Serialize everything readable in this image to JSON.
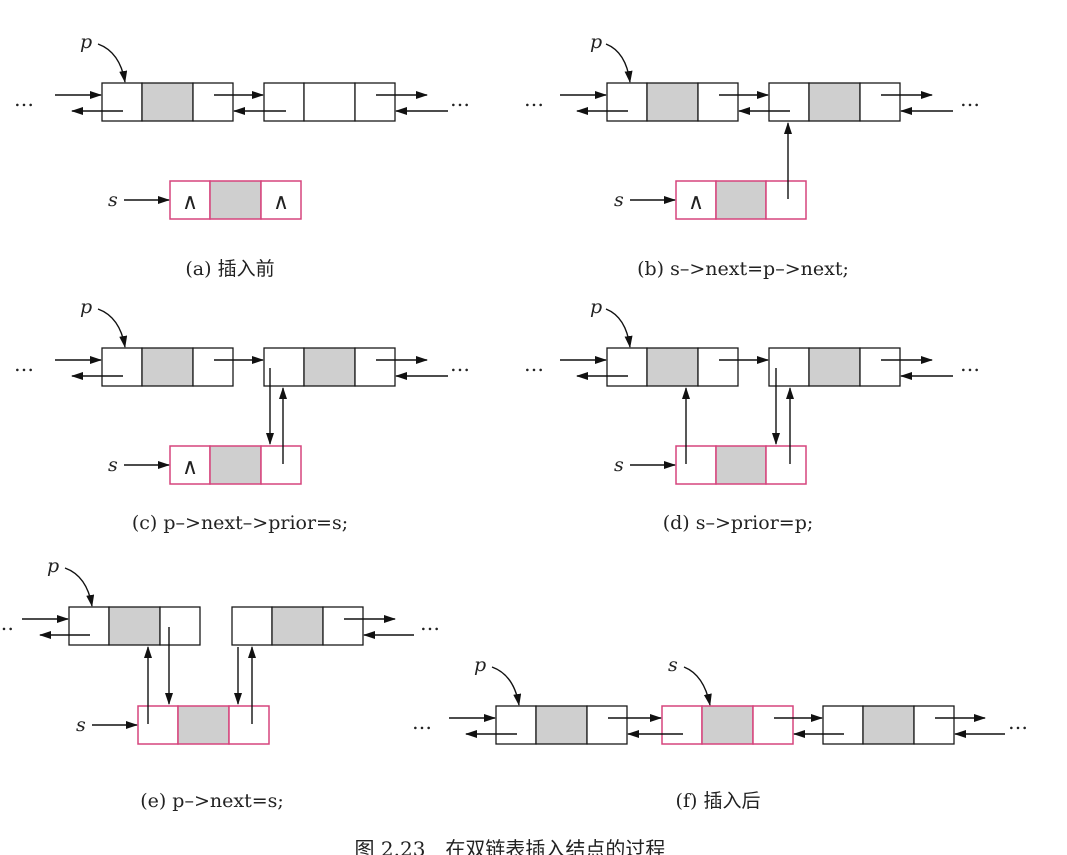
{
  "panels": {
    "a": {
      "caption": "(a) 插入前",
      "p_label": "p",
      "s_label": "s",
      "null_symbol": "∧"
    },
    "b": {
      "caption": "(b) s–>next=p–>next;",
      "p_label": "p",
      "s_label": "s",
      "null_symbol": "∧"
    },
    "c": {
      "caption": "(c) p–>next–>prior=s;",
      "p_label": "p",
      "s_label": "s",
      "null_symbol": "∧"
    },
    "d": {
      "caption": "(d) s–>prior=p;",
      "p_label": "p",
      "s_label": "s"
    },
    "e": {
      "caption": "(e) p–>next=s;",
      "p_label": "p",
      "s_label": "s"
    },
    "f": {
      "caption": "(f) 插入后",
      "p_label": "p",
      "s_label": "s"
    }
  },
  "ellipsis": "…",
  "figure_caption": "图 2.23　在双链表插入结点的过程",
  "colors": {
    "new_node_border": "#d6457d",
    "data_fill": "#cfcfcf",
    "line": "#111111"
  }
}
